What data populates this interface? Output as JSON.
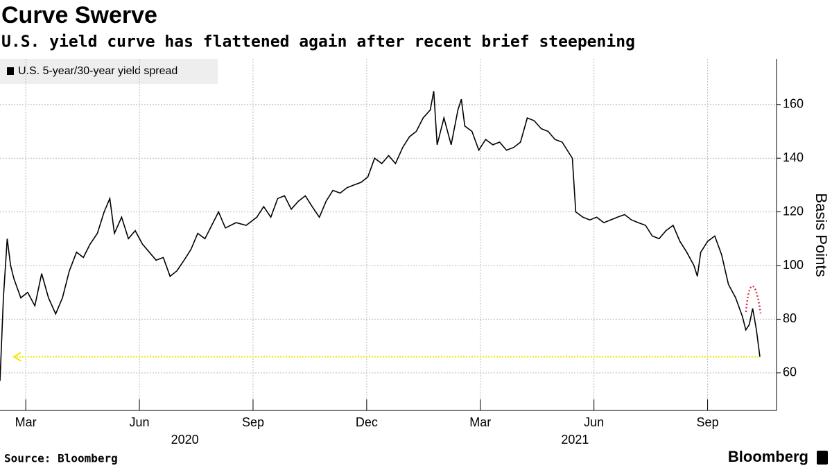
{
  "chart_data": {
    "type": "line",
    "title": "Curve Swerve",
    "subtitle": "U.S. yield curve has flattened again after recent brief steepening",
    "y_label": "Basis Points",
    "source": "Source: Bloomberg",
    "brand": "Bloomberg",
    "legend": "top-left",
    "grid": true,
    "series": [
      {
        "name": "U.S. 5-year/30-year yield spread",
        "color": "#000000",
        "x": [
          -0.68,
          -0.59,
          -0.49,
          -0.4,
          -0.31,
          -0.13,
          0.05,
          0.24,
          0.42,
          0.6,
          0.79,
          0.97,
          1.15,
          1.34,
          1.52,
          1.7,
          1.89,
          2.07,
          2.22,
          2.34,
          2.53,
          2.71,
          2.89,
          3.08,
          3.26,
          3.44,
          3.63,
          3.81,
          3.99,
          4.18,
          4.36,
          4.54,
          4.73,
          4.91,
          5.09,
          5.27,
          5.55,
          5.82,
          6.1,
          6.28,
          6.47,
          6.65,
          6.83,
          7.01,
          7.2,
          7.38,
          7.56,
          7.75,
          7.93,
          8.11,
          8.3,
          8.48,
          8.66,
          8.85,
          9.03,
          9.21,
          9.4,
          9.58,
          9.76,
          9.95,
          10.13,
          10.31,
          10.49,
          10.68,
          10.77,
          10.86,
          11.04,
          11.23,
          11.41,
          11.5,
          11.59,
          11.78,
          11.96,
          12.14,
          12.33,
          12.51,
          12.69,
          12.88,
          13.06,
          13.24,
          13.42,
          13.61,
          13.79,
          13.97,
          14.16,
          14.34,
          14.43,
          14.52,
          14.71,
          14.89,
          15.07,
          15.26,
          15.44,
          15.62,
          15.81,
          15.99,
          16.17,
          16.36,
          16.54,
          16.72,
          16.9,
          17.09,
          17.27,
          17.45,
          17.64,
          17.73,
          17.82,
          18.0,
          18.19,
          18.37,
          18.55,
          18.74,
          18.92,
          19.01,
          19.1,
          19.19,
          19.29,
          19.38
        ],
        "values": [
          57,
          88,
          110,
          100,
          95,
          88,
          90,
          85,
          97,
          88,
          82,
          88,
          98,
          105,
          103,
          108,
          112,
          120,
          125,
          112,
          118,
          110,
          113,
          108,
          105,
          102,
          103,
          96,
          98,
          102,
          106,
          112,
          110,
          115,
          120,
          114,
          116,
          115,
          118,
          122,
          118,
          125,
          126,
          121,
          124,
          126,
          122,
          118,
          124,
          128,
          127,
          129,
          130,
          131,
          133,
          140,
          138,
          141,
          138,
          144,
          148,
          150,
          155,
          158,
          165,
          145,
          155,
          145,
          158,
          162,
          152,
          150,
          143,
          147,
          145,
          146,
          143,
          144,
          146,
          155,
          154,
          151,
          150,
          147,
          146,
          142,
          140,
          120,
          118,
          117,
          118,
          116,
          117,
          118,
          119,
          117,
          116,
          115,
          111,
          110,
          113,
          115,
          109,
          105,
          100,
          96,
          105,
          109,
          111,
          104,
          93,
          88,
          81,
          76,
          78,
          84,
          76,
          66
        ]
      }
    ],
    "reference_line": {
      "value": 66,
      "color": "#f2e600"
    },
    "xlim": [
      -0.68,
      19.82
    ],
    "xticks": [
      {
        "value": 0,
        "label": "Mar"
      },
      {
        "value": 3,
        "label": "Jun"
      },
      {
        "value": 6,
        "label": "Sep"
      },
      {
        "value": 9,
        "label": "Dec"
      },
      {
        "value": 12,
        "label": "Mar"
      },
      {
        "value": 15,
        "label": "Jun"
      },
      {
        "value": 18,
        "label": "Sep"
      }
    ],
    "year_labels": [
      {
        "value": 4.2,
        "label": "2020"
      },
      {
        "value": 14.5,
        "label": "2021"
      }
    ],
    "ylim": [
      46,
      177
    ],
    "yticks": [
      60,
      80,
      100,
      120,
      140,
      160
    ]
  }
}
